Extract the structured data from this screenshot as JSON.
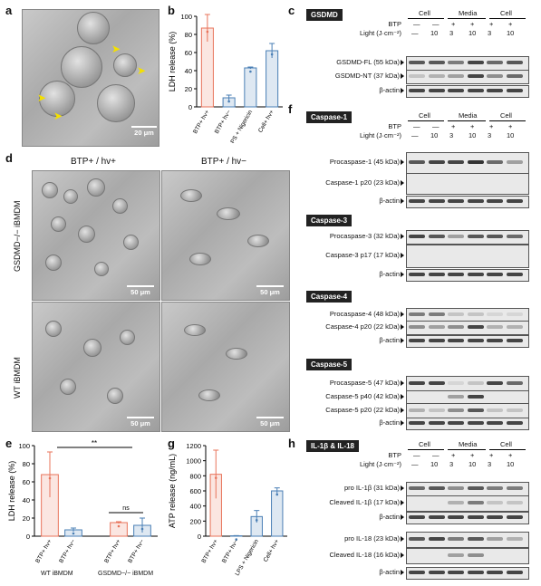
{
  "labels": {
    "a": "a",
    "b": "b",
    "c": "c",
    "d": "d",
    "e": "e",
    "f": "f",
    "g": "g",
    "h": "h"
  },
  "scale_bars": {
    "a": "20 μm",
    "d1": "50 μm",
    "d2": "50 μm",
    "d3": "50 μm",
    "d4": "50 μm"
  },
  "panel_d": {
    "col1": "BTP+ / hv+",
    "col2": "BTP+ / hv−",
    "row1": "GSDMD−/− iBMDM",
    "row2": "WT iBMDM"
  },
  "blot_header": {
    "cell": "Cell",
    "media": "Media",
    "cell2": "Cell",
    "btp": "BTP",
    "light": "Light (J·cm⁻²)",
    "btp_vals": [
      "—",
      "—",
      "+",
      "+",
      "+",
      "+"
    ],
    "light_vals": [
      "—",
      "10",
      "3",
      "10",
      "3",
      "10"
    ]
  },
  "panel_c": {
    "tag": "GSDMD",
    "bands": [
      "GSDMD-FL (55 kDa)",
      "GSDMD-NT (37 kDa)",
      "β-actin"
    ]
  },
  "panel_f": {
    "casp1": {
      "tag": "Caspase-1",
      "bands": [
        "Procaspase-1 (45 kDa)",
        "Caspase-1 p20 (23 kDa)",
        "β-actin"
      ]
    },
    "casp3": {
      "tag": "Caspase-3",
      "bands": [
        "Procaspase-3 (32 kDa)",
        "Caspase-3 p17 (17 kDa)",
        "β-actin"
      ]
    },
    "casp4": {
      "tag": "Caspase-4",
      "bands": [
        "Procaspase-4 (48 kDa)",
        "Caspase-4 p20 (22 kDa)",
        "β-actin"
      ]
    },
    "casp5": {
      "tag": "Caspase-5",
      "bands": [
        "Procaspase-5 (47 kDa)",
        "Caspase-5 p40 (42 kDa)",
        "Caspase-5 p20 (22 kDa)",
        "β-actin"
      ]
    }
  },
  "panel_h": {
    "tag": "IL-1β & IL-18",
    "bands": [
      "pro IL-1β (31 kDa)",
      "Cleaved IL-1β (17 kDa)",
      "β-actin",
      "pro IL-18 (23 kDa)",
      "Cleaved IL-18 (16 kDa)",
      "β-actin"
    ]
  },
  "panel_e": {
    "ns": "ns",
    "sig": "**",
    "group1": "WT iBMDM",
    "group2": "GSDMD−/− iBMDM"
  },
  "chart_data": [
    {
      "panel": "b",
      "type": "bar",
      "ylabel": "LDH release (%)",
      "ylim": [
        0,
        100
      ],
      "yticks": [
        0,
        20,
        40,
        60,
        80,
        100
      ],
      "categories": [
        "BTP+ hv+",
        "BTP+ hv−",
        "LPS + Nigericin",
        "Cell+ hv+"
      ],
      "values": [
        87,
        10,
        43,
        62
      ],
      "errors": [
        15,
        3,
        1,
        8
      ],
      "colors": [
        "#e8735a",
        "#4a7fb5",
        "#4a7fb5",
        "#4a7fb5"
      ]
    },
    {
      "panel": "e",
      "type": "bar",
      "ylabel": "LDH release (%)",
      "ylim": [
        0,
        100
      ],
      "yticks": [
        0,
        20,
        40,
        60,
        80,
        100
      ],
      "categories": [
        "BTP+ hv+",
        "BTP+ hv−",
        "BTP+ hv+",
        "BTP+ hv−"
      ],
      "values": [
        68,
        7,
        15,
        12
      ],
      "errors": [
        25,
        2,
        1,
        8
      ],
      "colors": [
        "#e8735a",
        "#4a7fb5",
        "#e8735a",
        "#4a7fb5"
      ]
    },
    {
      "panel": "g",
      "type": "bar",
      "ylabel": "ATP release (ng/mL)",
      "ylim": [
        0,
        1200
      ],
      "yticks": [
        0,
        200,
        400,
        600,
        800,
        1000,
        1200
      ],
      "categories": [
        "BTP+ hv+",
        "BTP+ hv−",
        "LPS + Nigericin",
        "Cell+ hv+"
      ],
      "values": [
        820,
        5,
        260,
        600
      ],
      "errors": [
        320,
        3,
        80,
        40
      ],
      "colors": [
        "#e8735a",
        "#4a7fb5",
        "#4a7fb5",
        "#4a7fb5"
      ]
    }
  ]
}
